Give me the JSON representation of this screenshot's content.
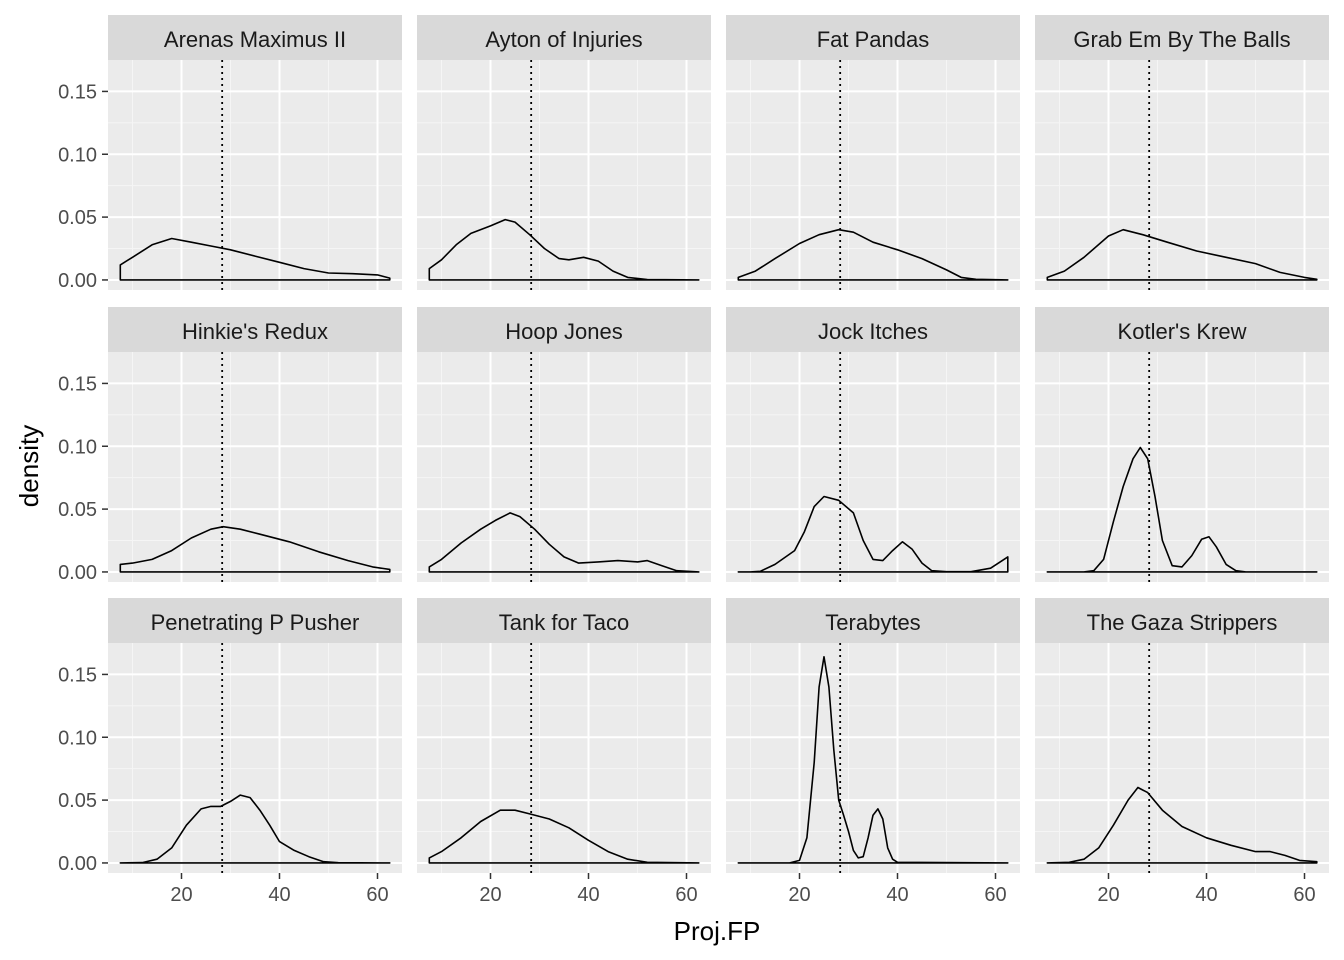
{
  "chart_data": {
    "type": "area",
    "facet_grid": {
      "rows": 3,
      "cols": 4
    },
    "xlabel": "Proj.FP",
    "ylabel": "density",
    "xlim": [
      5,
      65
    ],
    "ylim": [
      -0.008,
      0.175
    ],
    "x_ticks": [
      20,
      40,
      60
    ],
    "y_ticks": [
      0.0,
      0.05,
      0.1,
      0.15
    ],
    "y_tick_labels": [
      "0.00",
      "0.05",
      "0.10",
      "0.15"
    ],
    "grid": true,
    "reference_line": {
      "x": 28.3,
      "style": "dotted"
    },
    "panels": [
      {
        "name": "Arenas Maximus II",
        "points": [
          [
            7.5,
            0
          ],
          [
            7.5,
            0.012
          ],
          [
            10,
            0.018
          ],
          [
            14,
            0.028
          ],
          [
            18,
            0.033
          ],
          [
            22,
            0.03
          ],
          [
            26,
            0.027
          ],
          [
            30,
            0.024
          ],
          [
            35,
            0.019
          ],
          [
            40,
            0.014
          ],
          [
            45,
            0.009
          ],
          [
            50,
            0.0055
          ],
          [
            55,
            0.005
          ],
          [
            60,
            0.004
          ],
          [
            62.5,
            0.0015
          ],
          [
            62.5,
            0
          ]
        ]
      },
      {
        "name": "Ayton of Injuries",
        "points": [
          [
            7.5,
            0
          ],
          [
            7.5,
            0.009
          ],
          [
            10,
            0.016
          ],
          [
            13,
            0.028
          ],
          [
            16,
            0.037
          ],
          [
            20,
            0.043
          ],
          [
            23,
            0.048
          ],
          [
            25,
            0.046
          ],
          [
            28,
            0.036
          ],
          [
            31,
            0.025
          ],
          [
            34,
            0.017
          ],
          [
            36,
            0.016
          ],
          [
            39,
            0.018
          ],
          [
            42,
            0.015
          ],
          [
            45,
            0.007
          ],
          [
            48,
            0.002
          ],
          [
            52,
            0.0003
          ],
          [
            62.5,
            0
          ]
        ]
      },
      {
        "name": "Fat Pandas",
        "points": [
          [
            7.5,
            0
          ],
          [
            7.5,
            0.002
          ],
          [
            11,
            0.007
          ],
          [
            15,
            0.017
          ],
          [
            20,
            0.029
          ],
          [
            24,
            0.036
          ],
          [
            28,
            0.04
          ],
          [
            31,
            0.038
          ],
          [
            35,
            0.03
          ],
          [
            40,
            0.024
          ],
          [
            45,
            0.017
          ],
          [
            50,
            0.008
          ],
          [
            53,
            0.002
          ],
          [
            56,
            0.0005
          ],
          [
            62.5,
            0
          ]
        ]
      },
      {
        "name": "Grab Em By The Balls",
        "points": [
          [
            7.5,
            0
          ],
          [
            7.5,
            0.002
          ],
          [
            11,
            0.007
          ],
          [
            15,
            0.018
          ],
          [
            20,
            0.035
          ],
          [
            23,
            0.04
          ],
          [
            27,
            0.036
          ],
          [
            32,
            0.03
          ],
          [
            38,
            0.023
          ],
          [
            44,
            0.018
          ],
          [
            50,
            0.013
          ],
          [
            55,
            0.006
          ],
          [
            60,
            0.002
          ],
          [
            62.5,
            0.0005
          ],
          [
            62.5,
            0
          ]
        ]
      },
      {
        "name": "Hinkie's Redux",
        "points": [
          [
            7.5,
            0
          ],
          [
            7.5,
            0.006
          ],
          [
            10,
            0.007
          ],
          [
            14,
            0.01
          ],
          [
            18,
            0.017
          ],
          [
            22,
            0.027
          ],
          [
            26,
            0.034
          ],
          [
            28.5,
            0.036
          ],
          [
            32,
            0.034
          ],
          [
            36,
            0.03
          ],
          [
            42,
            0.024
          ],
          [
            48,
            0.016
          ],
          [
            54,
            0.009
          ],
          [
            59,
            0.004
          ],
          [
            62.5,
            0.002
          ],
          [
            62.5,
            0
          ]
        ]
      },
      {
        "name": "Hoop Jones",
        "points": [
          [
            7.5,
            0
          ],
          [
            7.5,
            0.004
          ],
          [
            10,
            0.01
          ],
          [
            14,
            0.023
          ],
          [
            18,
            0.034
          ],
          [
            21,
            0.041
          ],
          [
            24,
            0.047
          ],
          [
            26,
            0.044
          ],
          [
            29,
            0.034
          ],
          [
            32,
            0.022
          ],
          [
            35,
            0.012
          ],
          [
            38,
            0.007
          ],
          [
            42,
            0.008
          ],
          [
            46,
            0.009
          ],
          [
            50,
            0.008
          ],
          [
            52,
            0.009
          ],
          [
            55,
            0.005
          ],
          [
            58,
            0.001
          ],
          [
            62.5,
            0
          ]
        ]
      },
      {
        "name": "Jock Itches",
        "points": [
          [
            7.5,
            0
          ],
          [
            10,
            0
          ],
          [
            12,
            0.0005
          ],
          [
            15,
            0.006
          ],
          [
            19,
            0.017
          ],
          [
            21,
            0.032
          ],
          [
            23,
            0.052
          ],
          [
            25,
            0.06
          ],
          [
            28,
            0.057
          ],
          [
            31,
            0.047
          ],
          [
            33,
            0.025
          ],
          [
            35,
            0.01
          ],
          [
            37,
            0.009
          ],
          [
            39,
            0.017
          ],
          [
            41,
            0.024
          ],
          [
            43,
            0.018
          ],
          [
            45,
            0.007
          ],
          [
            47,
            0.001
          ],
          [
            50,
            0.0002
          ],
          [
            55,
            0.0002
          ],
          [
            59,
            0.003
          ],
          [
            62.5,
            0.012
          ],
          [
            62.5,
            0
          ]
        ]
      },
      {
        "name": "Kotler's Krew",
        "points": [
          [
            7.5,
            0
          ],
          [
            15,
            0
          ],
          [
            17,
            0.001
          ],
          [
            19,
            0.01
          ],
          [
            21,
            0.04
          ],
          [
            23,
            0.068
          ],
          [
            25,
            0.09
          ],
          [
            26.5,
            0.099
          ],
          [
            28,
            0.09
          ],
          [
            29.5,
            0.06
          ],
          [
            31,
            0.025
          ],
          [
            33,
            0.005
          ],
          [
            35,
            0.004
          ],
          [
            37,
            0.013
          ],
          [
            39,
            0.026
          ],
          [
            40.5,
            0.028
          ],
          [
            42,
            0.02
          ],
          [
            44,
            0.006
          ],
          [
            46,
            0.001
          ],
          [
            48,
            0
          ],
          [
            62.5,
            0
          ]
        ]
      },
      {
        "name": "Penetrating P Pusher",
        "points": [
          [
            7.5,
            0
          ],
          [
            12,
            0.0003
          ],
          [
            15,
            0.003
          ],
          [
            18,
            0.012
          ],
          [
            21,
            0.03
          ],
          [
            24,
            0.043
          ],
          [
            26,
            0.045
          ],
          [
            28,
            0.045
          ],
          [
            30,
            0.049
          ],
          [
            32,
            0.054
          ],
          [
            34,
            0.052
          ],
          [
            36,
            0.042
          ],
          [
            38,
            0.03
          ],
          [
            40,
            0.017
          ],
          [
            43,
            0.01
          ],
          [
            46,
            0.005
          ],
          [
            49,
            0.001
          ],
          [
            52,
            0.0002
          ],
          [
            62.5,
            0
          ]
        ]
      },
      {
        "name": "Tank for Taco",
        "points": [
          [
            7.5,
            0
          ],
          [
            7.5,
            0.004
          ],
          [
            10,
            0.009
          ],
          [
            14,
            0.02
          ],
          [
            18,
            0.033
          ],
          [
            22,
            0.042
          ],
          [
            25,
            0.042
          ],
          [
            28,
            0.039
          ],
          [
            32,
            0.035
          ],
          [
            36,
            0.028
          ],
          [
            40,
            0.018
          ],
          [
            44,
            0.009
          ],
          [
            48,
            0.003
          ],
          [
            52,
            0.0005
          ],
          [
            62.5,
            0
          ]
        ]
      },
      {
        "name": "Terabytes",
        "points": [
          [
            7.5,
            0
          ],
          [
            18,
            0
          ],
          [
            20,
            0.002
          ],
          [
            21.5,
            0.02
          ],
          [
            23,
            0.08
          ],
          [
            24,
            0.14
          ],
          [
            25,
            0.164
          ],
          [
            26,
            0.14
          ],
          [
            27,
            0.09
          ],
          [
            28,
            0.05
          ],
          [
            29,
            0.038
          ],
          [
            30,
            0.025
          ],
          [
            31,
            0.01
          ],
          [
            32,
            0.004
          ],
          [
            33,
            0.005
          ],
          [
            34,
            0.02
          ],
          [
            35,
            0.038
          ],
          [
            36,
            0.043
          ],
          [
            37,
            0.035
          ],
          [
            38,
            0.012
          ],
          [
            39,
            0.003
          ],
          [
            40,
            0.0005
          ],
          [
            62.5,
            0
          ]
        ]
      },
      {
        "name": "The Gaza Strippers",
        "points": [
          [
            7.5,
            0
          ],
          [
            12,
            0.0005
          ],
          [
            15,
            0.003
          ],
          [
            18,
            0.012
          ],
          [
            21,
            0.03
          ],
          [
            24,
            0.05
          ],
          [
            26,
            0.06
          ],
          [
            28,
            0.056
          ],
          [
            31,
            0.042
          ],
          [
            35,
            0.029
          ],
          [
            40,
            0.02
          ],
          [
            45,
            0.014
          ],
          [
            50,
            0.009
          ],
          [
            53,
            0.009
          ],
          [
            56,
            0.006
          ],
          [
            59,
            0.002
          ],
          [
            62.5,
            0.001
          ],
          [
            62.5,
            0
          ]
        ]
      }
    ]
  }
}
